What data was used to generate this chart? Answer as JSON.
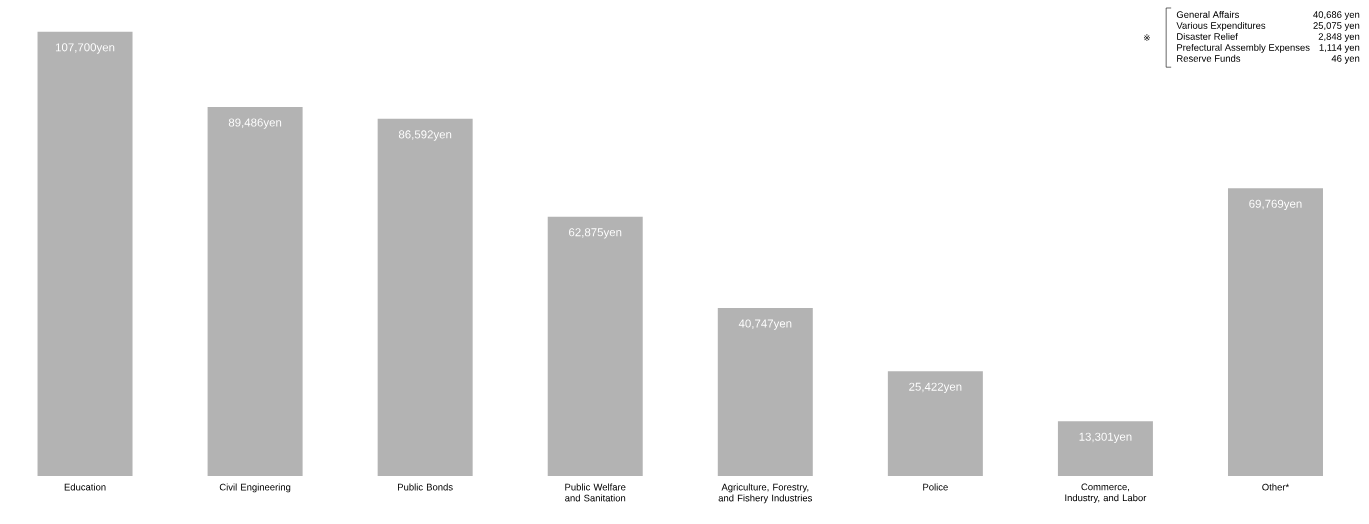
{
  "chart_data": {
    "type": "bar",
    "categories": [
      "Education",
      "Civil Engineering",
      "Public Bonds",
      "Public Welfare and Sanitation",
      "Agriculture, Forestry, and Fishery Industries",
      "Police",
      "Commerce, Industry, and Labor",
      "Other*"
    ],
    "values": [
      107700,
      89486,
      86592,
      62875,
      40747,
      25422,
      13301,
      69769
    ],
    "value_labels": [
      "107,700yen",
      "89,486yen",
      "86,592yen",
      "62,875yen",
      "40,747yen",
      "25,422yen",
      "13,301yen",
      "69,769yen"
    ],
    "color": "#b3b3b3",
    "annotations": [
      "※",
      "General Affairs",
      "40,686 yen",
      "Various Expenditures",
      "25,075 yen",
      "Disaster Relief",
      "2,848 yen",
      "Prefectural Assembly Expenses",
      "1,114 yen",
      "Reserve Funds",
      "46 yen"
    ]
  }
}
